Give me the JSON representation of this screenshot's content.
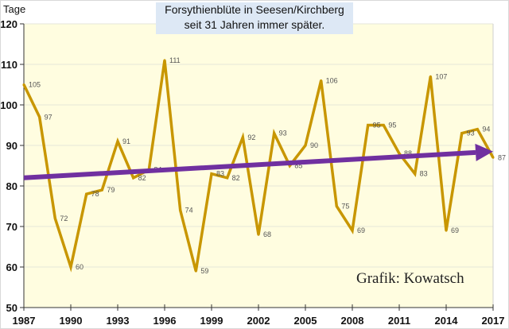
{
  "chart_data": {
    "type": "line",
    "title": "Forsythienblüte in Seesen/Kirchberg",
    "subtitle": "seit  31 Jahren immer später.",
    "xlabel": "",
    "ylabel": "Tage",
    "annotation": "Grafik: Kowatsch",
    "ylim": [
      50,
      120
    ],
    "xlim": [
      1987,
      2017
    ],
    "yticks": [
      50,
      60,
      70,
      80,
      90,
      100,
      110,
      120
    ],
    "xticks": [
      1987,
      1990,
      1993,
      1996,
      1999,
      2002,
      2005,
      2008,
      2011,
      2014,
      2017
    ],
    "grid": true,
    "series": [
      {
        "name": "Forsythienblüte (Tage)",
        "color": "#c89600",
        "x": [
          1987,
          1988,
          1989,
          1990,
          1991,
          1992,
          1993,
          1994,
          1995,
          1996,
          1997,
          1998,
          1999,
          2000,
          2001,
          2002,
          2003,
          2004,
          2005,
          2006,
          2007,
          2008,
          2009,
          2010,
          2011,
          2012,
          2013,
          2014,
          2015,
          2016,
          2017
        ],
        "values": [
          105,
          97,
          72,
          60,
          78,
          79,
          91,
          82,
          84,
          111,
          74,
          59,
          83,
          82,
          92,
          68,
          93,
          85,
          90,
          106,
          75,
          69,
          95,
          95,
          88,
          83,
          107,
          69,
          93,
          94,
          87
        ],
        "labels": [
          "105",
          "97",
          "72",
          "60",
          "78",
          "79",
          "91",
          "82",
          "84",
          "111",
          "74",
          "59",
          "83",
          "82",
          "92",
          "68",
          "93",
          "85",
          "90",
          "106",
          "75",
          "69",
          "95",
          "95",
          "88",
          "83",
          "107",
          "69",
          "93",
          "94",
          "87"
        ]
      }
    ],
    "trend": {
      "name": "Trendlinie",
      "color": "#7030a0",
      "x": [
        1987,
        2017
      ],
      "values": [
        82,
        88.5
      ]
    },
    "colors": {
      "plot_bg": "#fffde0",
      "grid": "#e6e6d8",
      "axis": "#333333"
    }
  }
}
